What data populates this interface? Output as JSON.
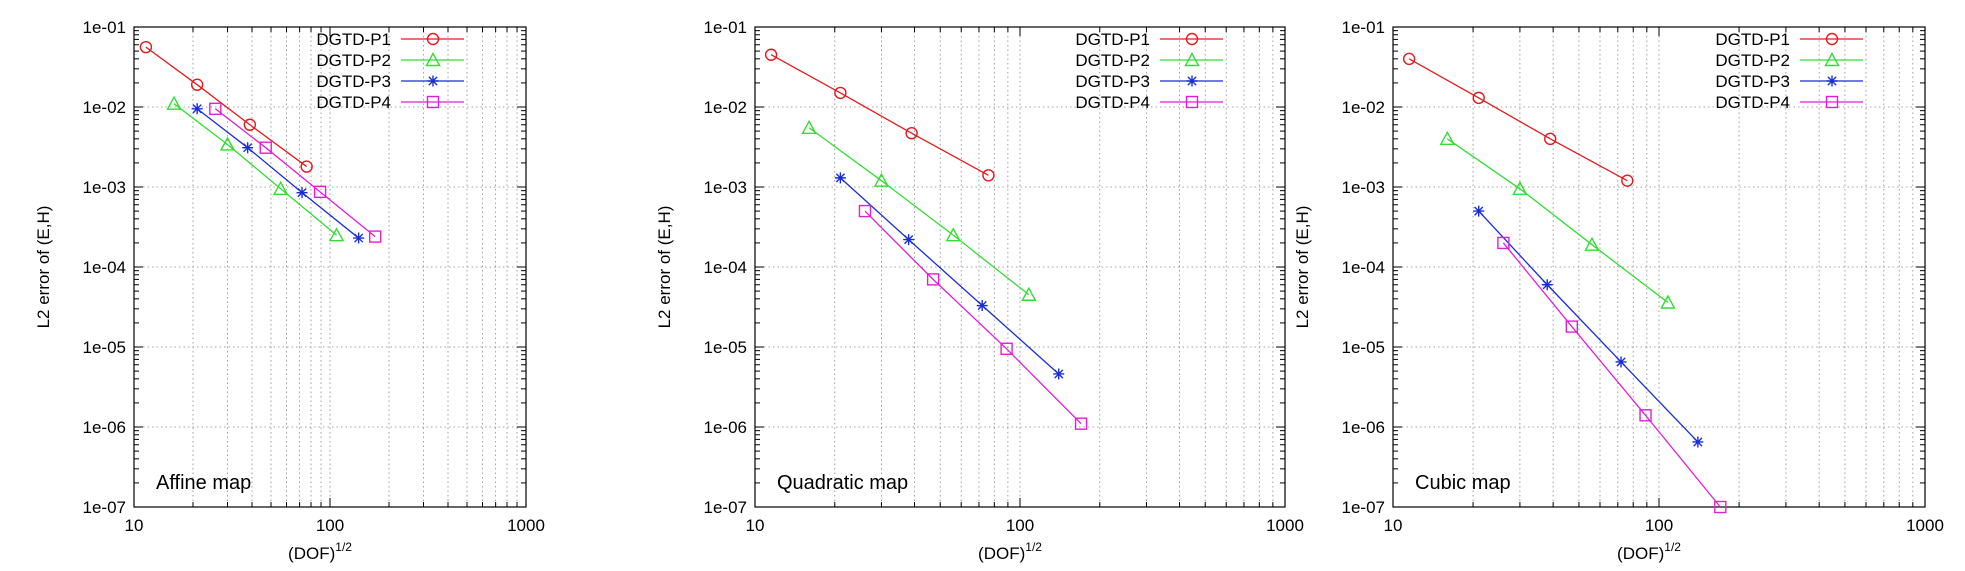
{
  "chart_data": [
    {
      "type": "line",
      "title": "",
      "annotation": "Affine map",
      "xlabel": "(DOF)",
      "xlabel_sup": "1/2",
      "ylabel": "L2 error of (E,H)",
      "x_scale": "log",
      "y_scale": "log",
      "xlim": [
        10,
        1000
      ],
      "ylim": [
        1e-07,
        0.1
      ],
      "x_ticks": [
        "10",
        "100",
        "1000"
      ],
      "y_ticks": [
        "1e-07",
        "1e-06",
        "1e-05",
        "1e-04",
        "1e-03",
        "1e-02",
        "1e-01"
      ],
      "grid": true,
      "legend_position": "top-right",
      "series": [
        {
          "name": "DGTD-P1",
          "color": "#e41a1c",
          "marker": "circle",
          "points": [
            [
              11.5,
              0.056
            ],
            [
              21,
              0.019
            ],
            [
              39,
              0.006
            ],
            [
              76,
              0.0018
            ]
          ]
        },
        {
          "name": "DGTD-P2",
          "color": "#33dd33",
          "marker": "triangle",
          "points": [
            [
              16,
              0.011
            ],
            [
              30,
              0.0034
            ],
            [
              56,
              0.00095
            ],
            [
              108,
              0.00025
            ]
          ]
        },
        {
          "name": "DGTD-P3",
          "color": "#1a2ed6",
          "marker": "star",
          "points": [
            [
              21,
              0.0095
            ],
            [
              38,
              0.0031
            ],
            [
              72,
              0.00085
            ],
            [
              140,
              0.00023
            ]
          ]
        },
        {
          "name": "DGTD-P4",
          "color": "#e11fd7",
          "marker": "square",
          "points": [
            [
              26,
              0.0095
            ],
            [
              47,
              0.0031
            ],
            [
              89,
              0.00087
            ],
            [
              170,
              0.00024
            ]
          ]
        }
      ]
    },
    {
      "type": "line",
      "title": "",
      "annotation": "Quadratic map",
      "xlabel": "(DOF)",
      "xlabel_sup": "1/2",
      "ylabel": "L2 error of (E,H)",
      "x_scale": "log",
      "y_scale": "log",
      "xlim": [
        10,
        1000
      ],
      "ylim": [
        1e-07,
        0.1
      ],
      "x_ticks": [
        "10",
        "100",
        "1000"
      ],
      "y_ticks": [
        "1e-07",
        "1e-06",
        "1e-05",
        "1e-04",
        "1e-03",
        "1e-02",
        "1e-01"
      ],
      "grid": true,
      "legend_position": "top-right",
      "series": [
        {
          "name": "DGTD-P1",
          "color": "#e41a1c",
          "marker": "circle",
          "points": [
            [
              11.5,
              0.045
            ],
            [
              21,
              0.015
            ],
            [
              39,
              0.0047
            ],
            [
              76,
              0.0014
            ]
          ]
        },
        {
          "name": "DGTD-P2",
          "color": "#33dd33",
          "marker": "triangle",
          "points": [
            [
              16,
              0.0055
            ],
            [
              30,
              0.0012
            ],
            [
              56,
              0.00025
            ],
            [
              108,
              4.5e-05
            ]
          ]
        },
        {
          "name": "DGTD-P3",
          "color": "#1a2ed6",
          "marker": "star",
          "points": [
            [
              21,
              0.0013
            ],
            [
              38,
              0.00022
            ],
            [
              72,
              3.3e-05
            ],
            [
              140,
              4.6e-06
            ]
          ]
        },
        {
          "name": "DGTD-P4",
          "color": "#e11fd7",
          "marker": "square",
          "points": [
            [
              26,
              0.0005
            ],
            [
              47,
              7e-05
            ],
            [
              89,
              9.5e-06
            ],
            [
              170,
              1.1e-06
            ]
          ]
        }
      ]
    },
    {
      "type": "line",
      "title": "",
      "annotation": "Cubic map",
      "xlabel": "(DOF)",
      "xlabel_sup": "1/2",
      "ylabel": "L2 error of (E,H)",
      "x_scale": "log",
      "y_scale": "log",
      "xlim": [
        10,
        1000
      ],
      "ylim": [
        1e-07,
        0.1
      ],
      "x_ticks": [
        "10",
        "100",
        "1000"
      ],
      "y_ticks": [
        "1e-07",
        "1e-06",
        "1e-05",
        "1e-04",
        "1e-03",
        "1e-02",
        "1e-01"
      ],
      "grid": true,
      "legend_position": "top-right",
      "series": [
        {
          "name": "DGTD-P1",
          "color": "#e41a1c",
          "marker": "circle",
          "points": [
            [
              11.5,
              0.04
            ],
            [
              21,
              0.013
            ],
            [
              39,
              0.004
            ],
            [
              76,
              0.0012
            ]
          ]
        },
        {
          "name": "DGTD-P2",
          "color": "#33dd33",
          "marker": "triangle",
          "points": [
            [
              16,
              0.004
            ],
            [
              30,
              0.00095
            ],
            [
              56,
              0.00019
            ],
            [
              108,
              3.6e-05
            ]
          ]
        },
        {
          "name": "DGTD-P3",
          "color": "#1a2ed6",
          "marker": "star",
          "points": [
            [
              21,
              0.0005
            ],
            [
              38,
              6e-05
            ],
            [
              72,
              6.5e-06
            ],
            [
              140,
              6.5e-07
            ]
          ]
        },
        {
          "name": "DGTD-P4",
          "color": "#e11fd7",
          "marker": "square",
          "points": [
            [
              26,
              0.0002
            ],
            [
              47,
              1.8e-05
            ],
            [
              89,
              1.4e-06
            ],
            [
              170,
              1e-07
            ]
          ]
        }
      ]
    }
  ]
}
